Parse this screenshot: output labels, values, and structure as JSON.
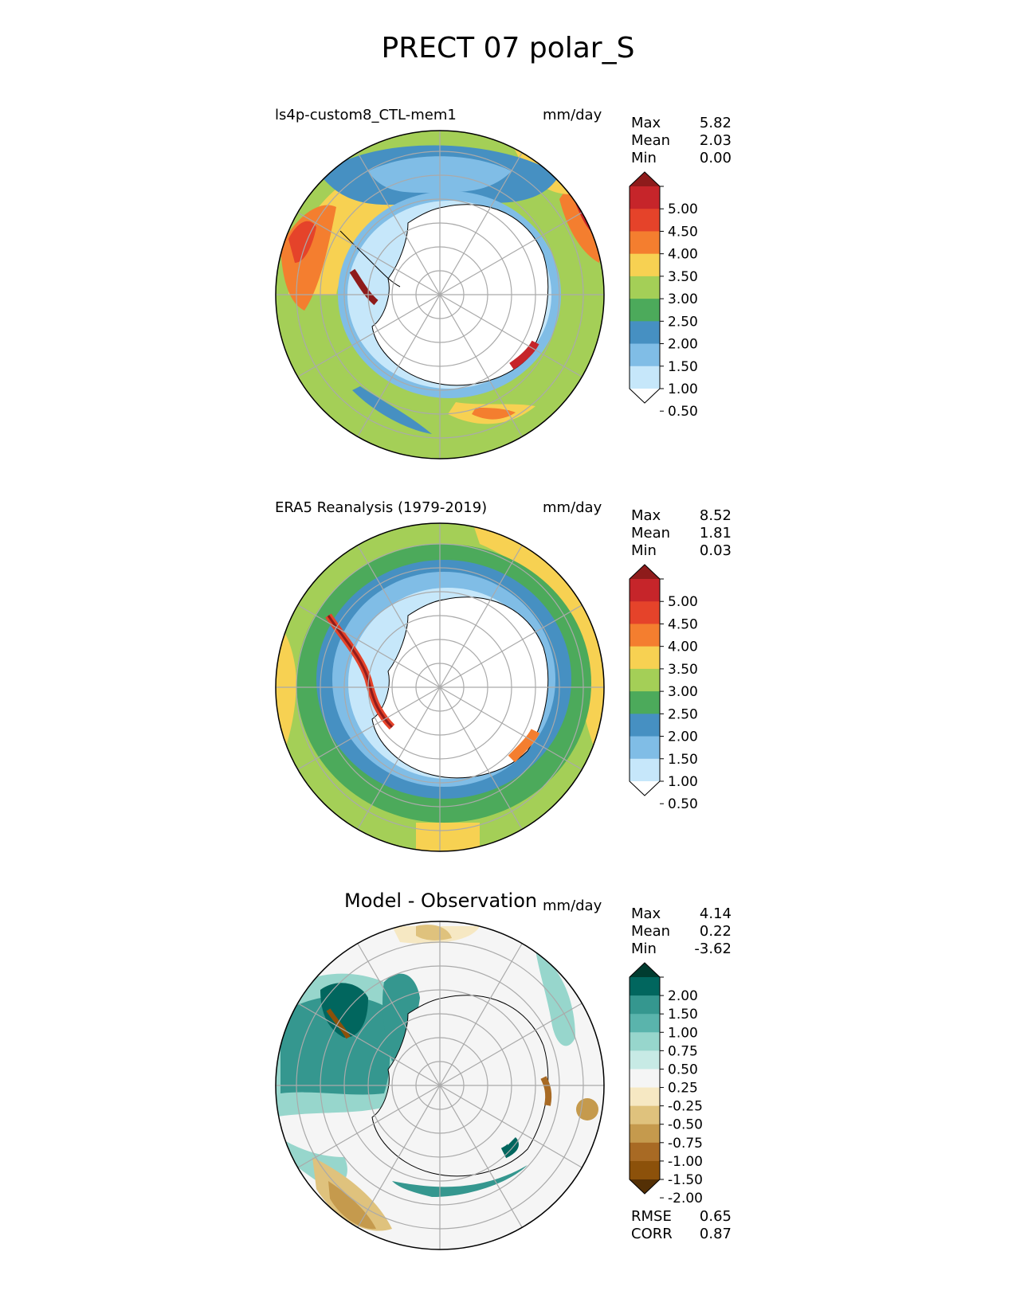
{
  "figure": {
    "title": "PRECT 07 polar_S"
  },
  "panels": [
    {
      "id": "test",
      "title": "ls4p-custom8_CTL-mem1",
      "units": "mm/day",
      "stats": [
        {
          "label": "Max",
          "value": "5.82"
        },
        {
          "label": "Mean",
          "value": "2.03"
        },
        {
          "label": "Min",
          "value": "0.00"
        }
      ],
      "colorbar": {
        "ticks": [
          "5.00",
          "4.50",
          "4.00",
          "3.50",
          "3.00",
          "2.50",
          "2.00",
          "1.50",
          "1.00",
          "0.50"
        ],
        "colors": [
          "#8e1b1b",
          "#c6252a",
          "#e5432a",
          "#f47e2f",
          "#f7d152",
          "#a4cf57",
          "#4caa5b",
          "#4690c2",
          "#80bde6",
          "#c6e7fa",
          "#ffffff"
        ]
      }
    },
    {
      "id": "ref",
      "title": "ERA5 Reanalysis (1979-2019)",
      "units": "mm/day",
      "stats": [
        {
          "label": "Max",
          "value": "8.52"
        },
        {
          "label": "Mean",
          "value": "1.81"
        },
        {
          "label": "Min",
          "value": "0.03"
        }
      ],
      "colorbar": {
        "ticks": [
          "5.00",
          "4.50",
          "4.00",
          "3.50",
          "3.00",
          "2.50",
          "2.00",
          "1.50",
          "1.00",
          "0.50"
        ],
        "colors": [
          "#8e1b1b",
          "#c6252a",
          "#e5432a",
          "#f47e2f",
          "#f7d152",
          "#a4cf57",
          "#4caa5b",
          "#4690c2",
          "#80bde6",
          "#c6e7fa",
          "#ffffff"
        ]
      }
    },
    {
      "id": "diff",
      "title": "Model - Observation",
      "units": "mm/day",
      "stats": [
        {
          "label": "Max",
          "value": "4.14"
        },
        {
          "label": "Mean",
          "value": "0.22"
        },
        {
          "label": "Min",
          "value": "-3.62"
        }
      ],
      "colorbar": {
        "ticks": [
          "2.00",
          "1.50",
          "1.00",
          "0.75",
          "0.50",
          "0.25",
          "-0.25",
          "-0.50",
          "-0.75",
          "-1.00",
          "-1.50",
          "-2.00"
        ],
        "colors": [
          "#003c30",
          "#01665e",
          "#35978f",
          "#5ab4ac",
          "#97d6cc",
          "#c7eae5",
          "#f5f5f5",
          "#f6e8c3",
          "#dfc27d",
          "#c59a4d",
          "#a86a24",
          "#8c510a",
          "#543005"
        ]
      },
      "footer": [
        {
          "label": "RMSE",
          "value": "0.65"
        },
        {
          "label": "CORR",
          "value": "0.87"
        }
      ]
    }
  ],
  "chart_data": [
    {
      "type": "heatmap",
      "projection": "south-polar-stereographic",
      "title": "ls4p-custom8_CTL-mem1",
      "units": "mm/day",
      "levels": [
        0.5,
        1.0,
        1.5,
        2.0,
        2.5,
        3.0,
        3.5,
        4.0,
        4.5,
        5.0
      ],
      "extend": "both",
      "stats": {
        "max": 5.82,
        "mean": 2.03,
        "min": 0.0
      }
    },
    {
      "type": "heatmap",
      "projection": "south-polar-stereographic",
      "title": "ERA5 Reanalysis (1979-2019)",
      "units": "mm/day",
      "levels": [
        0.5,
        1.0,
        1.5,
        2.0,
        2.5,
        3.0,
        3.5,
        4.0,
        4.5,
        5.0
      ],
      "extend": "both",
      "stats": {
        "max": 8.52,
        "mean": 1.81,
        "min": 0.03
      }
    },
    {
      "type": "heatmap",
      "projection": "south-polar-stereographic",
      "title": "Model - Observation",
      "units": "mm/day",
      "levels": [
        -2.0,
        -1.5,
        -1.0,
        -0.75,
        -0.5,
        -0.25,
        0.25,
        0.5,
        0.75,
        1.0,
        1.5,
        2.0
      ],
      "extend": "both",
      "stats": {
        "max": 4.14,
        "mean": 0.22,
        "min": -3.62,
        "rmse": 0.65,
        "corr": 0.87
      }
    }
  ]
}
